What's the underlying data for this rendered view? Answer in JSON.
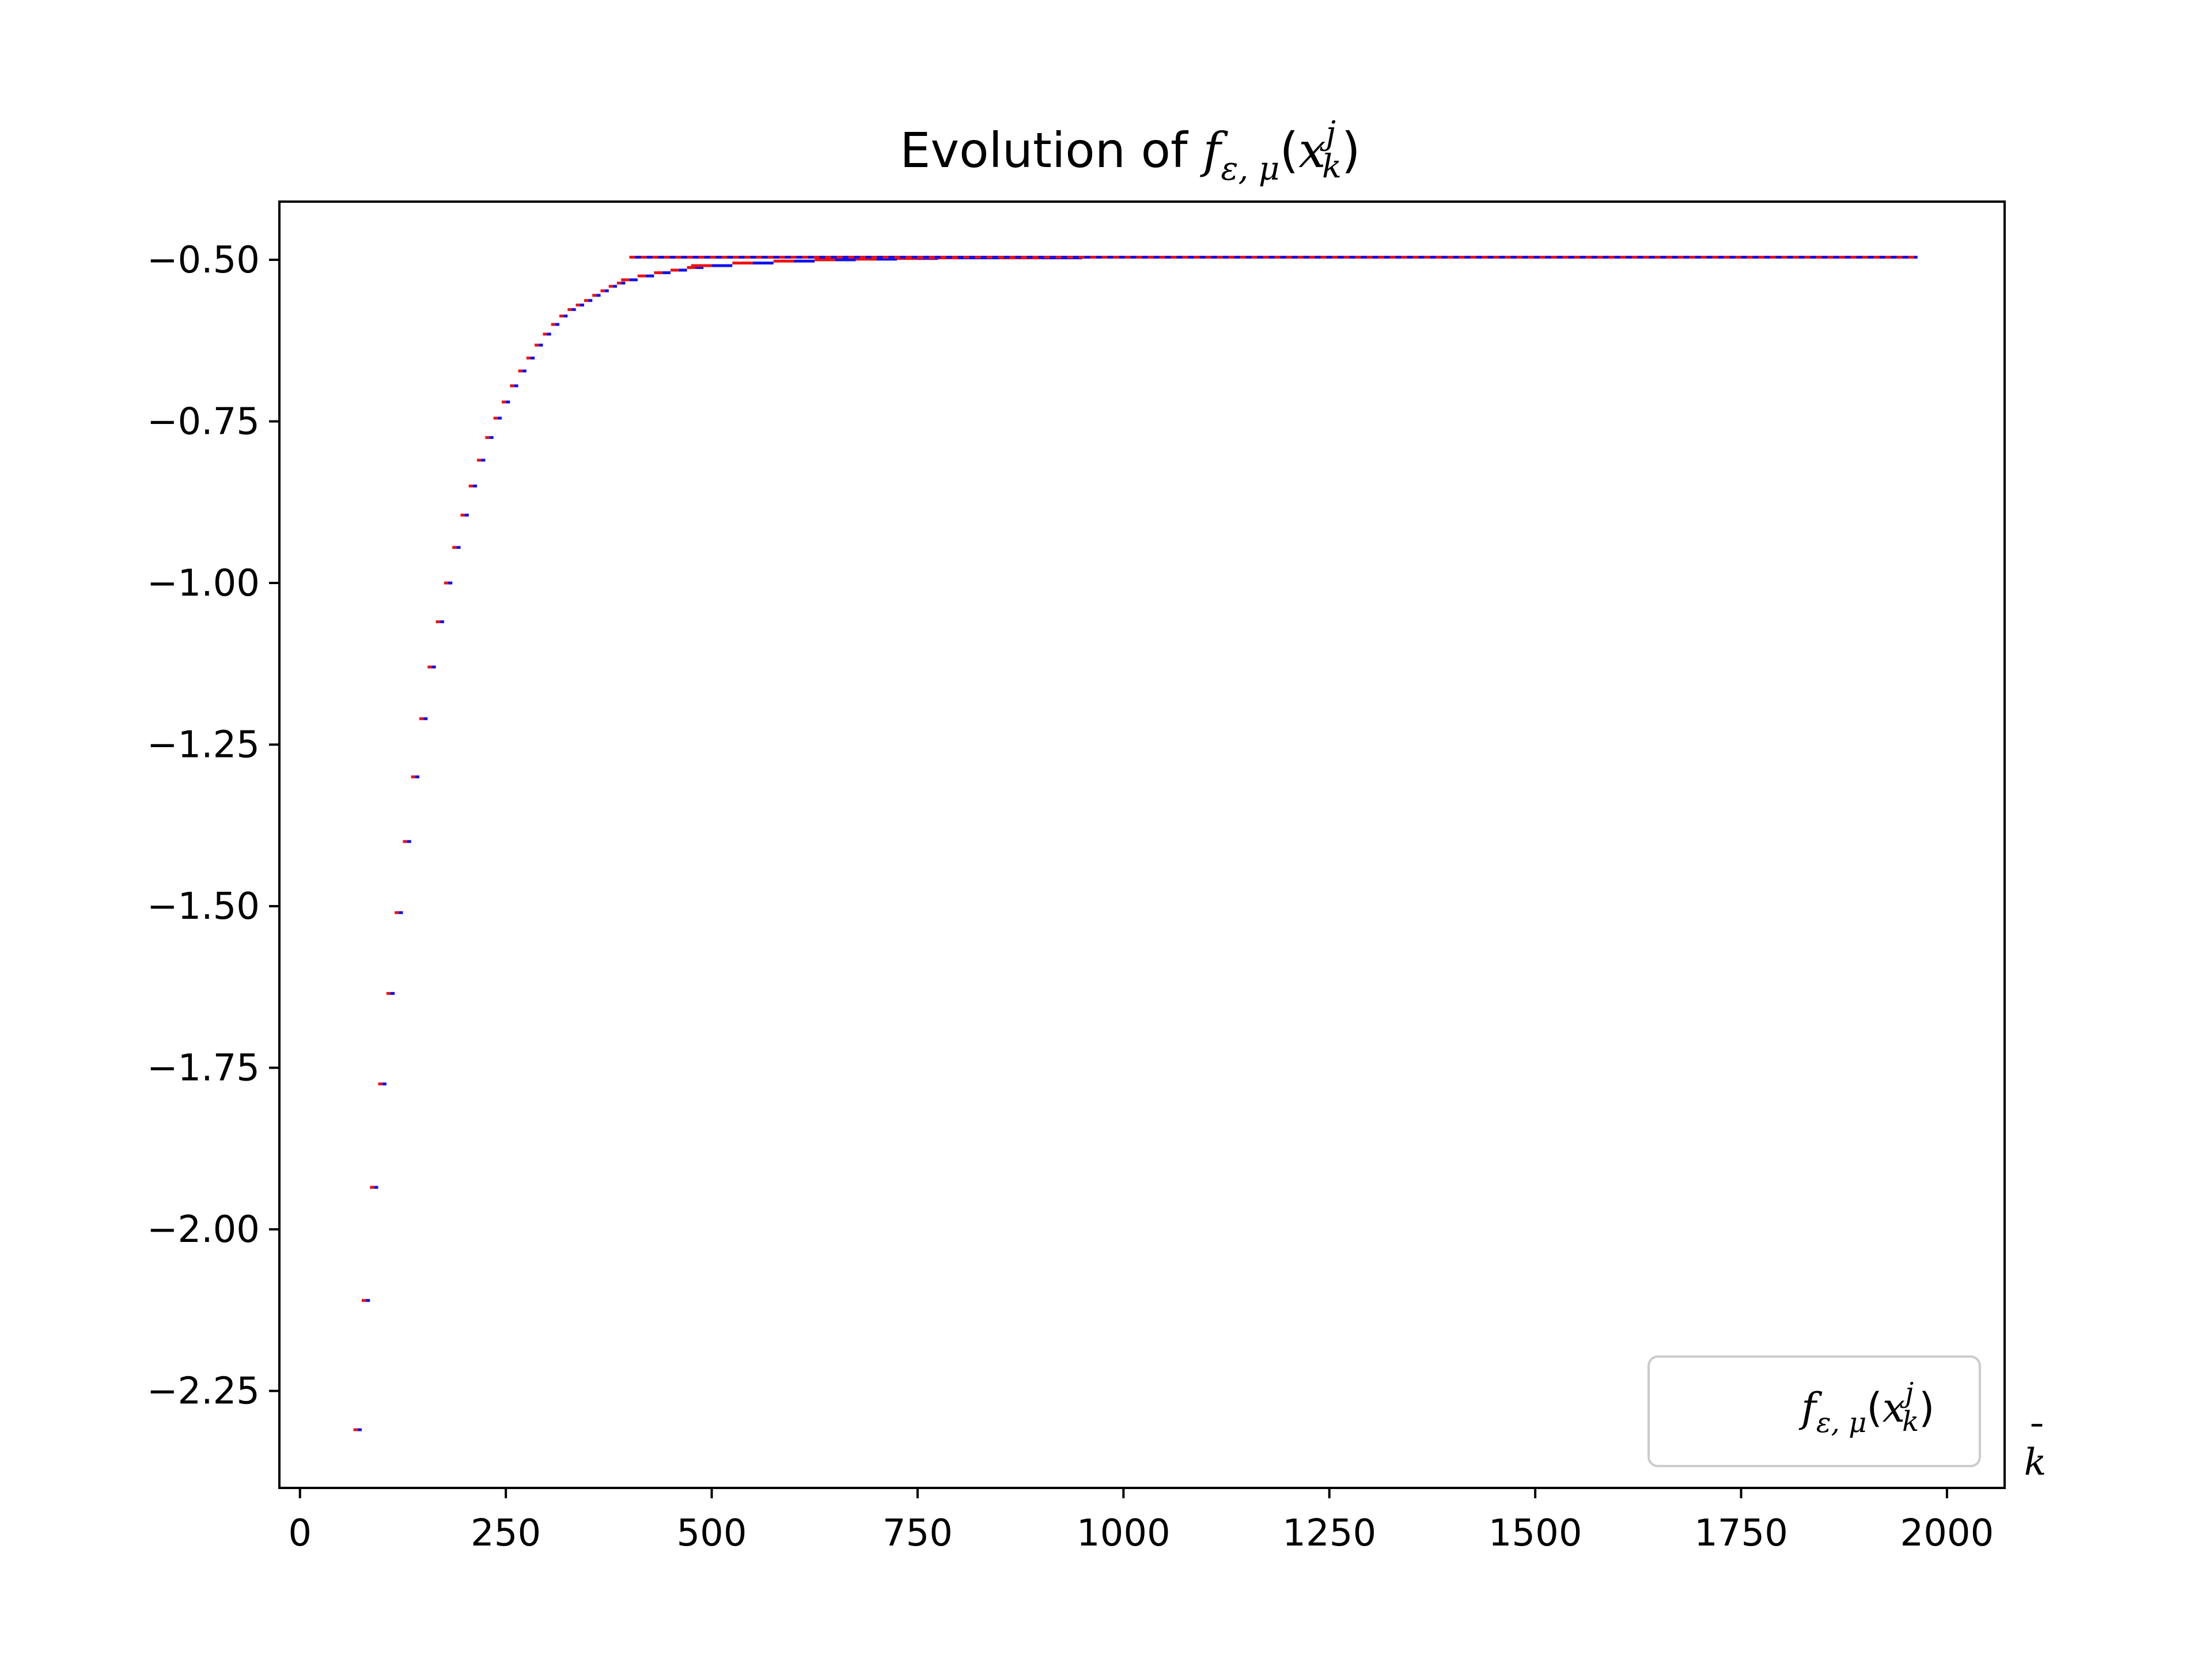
{
  "chart_data": {
    "type": "line",
    "title_prefix": "Evolution of ",
    "title_math": {
      "base": "f",
      "sub": "ε, μ",
      "arg_base": "x",
      "arg_sup": "j",
      "arg_sub": "k"
    },
    "xlabel": {
      "base": "k",
      "accent": "¯"
    },
    "ylabel": "",
    "xlim": [
      -25,
      2070
    ],
    "ylim": [
      -2.4,
      -0.41
    ],
    "xticks": [
      0,
      250,
      500,
      750,
      1000,
      1250,
      1500,
      1750,
      2000
    ],
    "yticks": [
      -2.25,
      -2.0,
      -1.75,
      -1.5,
      -1.25,
      -1.0,
      -0.75,
      -0.5
    ],
    "ytick_labels": [
      "−2.25",
      "−2.00",
      "−1.75",
      "−1.50",
      "−1.25",
      "−1.00",
      "−0.75",
      "−0.50"
    ],
    "legend_position": "lower right",
    "grid": false,
    "colors": {
      "start": "#ee1111",
      "end": "#1111ee"
    },
    "series": [
      {
        "x": [
          70,
          80,
          90,
          100,
          110,
          120,
          130,
          140,
          150,
          160,
          170,
          180,
          190,
          200,
          210,
          220,
          230,
          240,
          250,
          260,
          270,
          280,
          290,
          300,
          310,
          320,
          330,
          340,
          350,
          360,
          370,
          380,
          390,
          400,
          420,
          440,
          460,
          480,
          500,
          550,
          600,
          650,
          700,
          750,
          800,
          900,
          1000,
          1200,
          1400,
          1600,
          1800,
          1960
        ],
        "y": [
          -2.31,
          -2.11,
          -1.935,
          -1.775,
          -1.635,
          -1.51,
          -1.4,
          -1.3,
          -1.21,
          -1.13,
          -1.06,
          -1.0,
          -0.945,
          -0.895,
          -0.85,
          -0.81,
          -0.775,
          -0.745,
          -0.72,
          -0.695,
          -0.672,
          -0.652,
          -0.632,
          -0.615,
          -0.6,
          -0.587,
          -0.577,
          -0.57,
          -0.563,
          -0.555,
          -0.548,
          -0.541,
          -0.536,
          -0.531,
          -0.525,
          -0.52,
          -0.516,
          -0.512,
          -0.509,
          -0.505,
          -0.502,
          -0.5,
          -0.499,
          -0.498,
          -0.497,
          -0.497,
          -0.496,
          -0.496,
          -0.496,
          -0.496,
          -0.496,
          -0.496
        ]
      }
    ]
  }
}
